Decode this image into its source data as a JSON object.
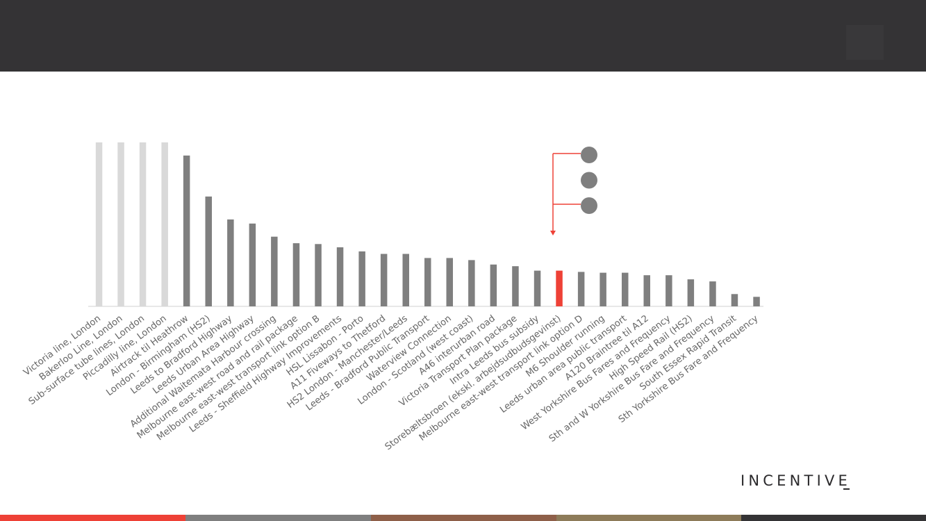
{
  "logo": {
    "text": "INCENTIVE"
  },
  "colors": {
    "header_bg": "#343335",
    "bar_light": "#d9d9d9",
    "bar_default": "#7f7f7f",
    "bar_highlight": "#ee4136",
    "legend_dot": "#7f7f7f",
    "axis_line": "#d9d9d9",
    "footer_segments": [
      "#ee4136",
      "#7f7f7f",
      "#8e5f49",
      "#8d7b59",
      "#343335"
    ]
  },
  "chart_data": {
    "type": "bar",
    "title": "",
    "xlabel": "",
    "ylabel": "",
    "ylim": [
      0,
      100
    ],
    "categories": [
      "Victoria line, London",
      "Bakerloo Line, London",
      "Sub-surface tube lines, London",
      "Piccadilly line, London",
      "Airtrack til Heathrow",
      "London - Birmingham (HS2)",
      "Leeds to Bradford Highway",
      "Leeds Urban Area Highway",
      "Additional Waitemata Harbour crossing",
      "Melbourne east-west road and rail package",
      "Melbourne east-west transport link option B",
      "Leeds - Sheffield Highway Improvements",
      "HSL Lissabon - Porto",
      "A11 Fiveways to Thetford",
      "HS2 London - Manchester/Leeds",
      "Leeds - Bradford Public Transport",
      "Waterview Connection",
      "London - Scotland (west coast)",
      "A46 interurban road",
      "Victoria Transport Plan package",
      "Intra Leeds bus subsidy",
      "Storebæltsbroen (ekskl. arbejdsudbudsgevinst)",
      "Melbourne east-west transport link option D",
      "M6 Shoulder running",
      "Leeds urban area public transport",
      "A120 Braintree til A12",
      "West Yorkshire Bus Fares and Frequency",
      "High Speed Rail (HS2)",
      "Sth and W Yorkshire Bus Fare and Frequency",
      "South Essex Rapid Transit",
      "Sth Yorkshire Bus Fare and Frequency"
    ],
    "values": [
      100,
      100,
      100,
      100,
      92,
      67,
      53,
      50.5,
      42.5,
      38.5,
      38,
      36,
      33.5,
      32,
      32,
      29.5,
      29.5,
      28.2,
      25.5,
      24.5,
      21.8,
      21.8,
      21,
      20.5,
      20.5,
      19,
      19,
      16.5,
      15.2,
      7.5,
      5.8
    ],
    "bar_styles": [
      "light",
      "light",
      "light",
      "light",
      "default",
      "default",
      "default",
      "default",
      "default",
      "default",
      "default",
      "default",
      "default",
      "default",
      "default",
      "default",
      "default",
      "default",
      "default",
      "default",
      "default",
      "highlight",
      "default",
      "default",
      "default",
      "default",
      "default",
      "default",
      "default",
      "default",
      "default"
    ],
    "legend_markers": 3
  }
}
